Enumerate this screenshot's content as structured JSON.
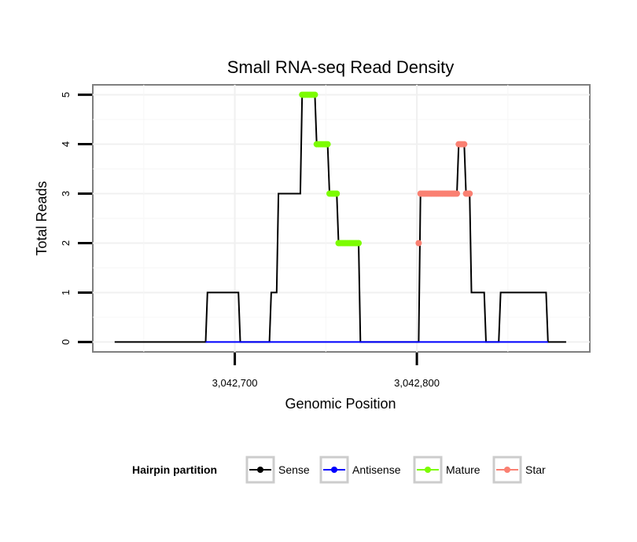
{
  "chart_data": {
    "type": "line",
    "title": "Small RNA-seq Read Density",
    "xlabel": "Genomic Position",
    "ylabel": "Total Reads",
    "xlim": [
      3042622,
      3042895
    ],
    "ylim": [
      -0.2,
      5.2
    ],
    "x_ticks": [
      3042700,
      3042800
    ],
    "x_tick_labels": [
      "3,042,700",
      "3,042,800"
    ],
    "y_ticks": [
      0,
      1,
      2,
      3,
      4,
      5
    ],
    "y_tick_labels": [
      "0",
      "1",
      "2",
      "3",
      "4",
      "5"
    ],
    "grid": true,
    "legend": {
      "title": "Hairpin partition",
      "position": "bottom",
      "entries": [
        {
          "name": "Sense",
          "color": "#000000"
        },
        {
          "name": "Antisense",
          "color": "#0000ff"
        },
        {
          "name": "Mature",
          "color": "#7cfc00"
        },
        {
          "name": "Star",
          "color": "#fa8072"
        }
      ]
    },
    "series": [
      {
        "name": "Sense",
        "color": "#000000",
        "points": [
          [
            3042634,
            0
          ],
          [
            3042684,
            0
          ],
          [
            3042685,
            1
          ],
          [
            3042702,
            1
          ],
          [
            3042703,
            0
          ],
          [
            3042719,
            0
          ],
          [
            3042720,
            1
          ],
          [
            3042723,
            1
          ],
          [
            3042724,
            3
          ],
          [
            3042736,
            3
          ],
          [
            3042737,
            5
          ],
          [
            3042744,
            5
          ],
          [
            3042745,
            4
          ],
          [
            3042751,
            4
          ],
          [
            3042752,
            3
          ],
          [
            3042756,
            3
          ],
          [
            3042757,
            2
          ],
          [
            3042768,
            2
          ],
          [
            3042769,
            0
          ],
          [
            3042801,
            0
          ],
          [
            3042802,
            3
          ],
          [
            3042822,
            3
          ],
          [
            3042823,
            4
          ],
          [
            3042826,
            4
          ],
          [
            3042827,
            3
          ],
          [
            3042829,
            3
          ],
          [
            3042830,
            1
          ],
          [
            3042837,
            1
          ],
          [
            3042838,
            0
          ],
          [
            3042845,
            0
          ],
          [
            3042846,
            1
          ],
          [
            3042871,
            1
          ],
          [
            3042872,
            0
          ],
          [
            3042882,
            0
          ]
        ]
      },
      {
        "name": "Antisense",
        "color": "#0000ff",
        "points": [
          [
            3042684,
            0
          ],
          [
            3042872,
            0
          ]
        ]
      },
      {
        "name": "Mature",
        "color": "#7cfc00",
        "points": [
          [
            3042737,
            5
          ],
          [
            3042738,
            5
          ],
          [
            3042739,
            5
          ],
          [
            3042740,
            5
          ],
          [
            3042741,
            5
          ],
          [
            3042742,
            5
          ],
          [
            3042743,
            5
          ],
          [
            3042744,
            5
          ],
          [
            3042745,
            4
          ],
          [
            3042746,
            4
          ],
          [
            3042747,
            4
          ],
          [
            3042748,
            4
          ],
          [
            3042749,
            4
          ],
          [
            3042750,
            4
          ],
          [
            3042751,
            4
          ],
          [
            3042752,
            3
          ],
          [
            3042753,
            3
          ],
          [
            3042754,
            3
          ],
          [
            3042755,
            3
          ],
          [
            3042756,
            3
          ],
          [
            3042757,
            2
          ],
          [
            3042758,
            2
          ],
          [
            3042759,
            2
          ],
          [
            3042760,
            2
          ],
          [
            3042761,
            2
          ],
          [
            3042762,
            2
          ],
          [
            3042763,
            2
          ],
          [
            3042764,
            2
          ],
          [
            3042765,
            2
          ],
          [
            3042766,
            2
          ],
          [
            3042767,
            2
          ],
          [
            3042768,
            2
          ]
        ]
      },
      {
        "name": "Star",
        "color": "#fa8072",
        "points": [
          [
            3042801,
            2
          ],
          [
            3042802,
            3
          ],
          [
            3042803,
            3
          ],
          [
            3042804,
            3
          ],
          [
            3042805,
            3
          ],
          [
            3042806,
            3
          ],
          [
            3042807,
            3
          ],
          [
            3042808,
            3
          ],
          [
            3042809,
            3
          ],
          [
            3042810,
            3
          ],
          [
            3042811,
            3
          ],
          [
            3042812,
            3
          ],
          [
            3042813,
            3
          ],
          [
            3042814,
            3
          ],
          [
            3042815,
            3
          ],
          [
            3042816,
            3
          ],
          [
            3042817,
            3
          ],
          [
            3042818,
            3
          ],
          [
            3042819,
            3
          ],
          [
            3042820,
            3
          ],
          [
            3042821,
            3
          ],
          [
            3042822,
            3
          ],
          [
            3042823,
            4
          ],
          [
            3042824,
            4
          ],
          [
            3042825,
            4
          ],
          [
            3042826,
            4
          ],
          [
            3042827,
            3
          ],
          [
            3042828,
            3
          ],
          [
            3042829,
            3
          ]
        ]
      }
    ]
  }
}
